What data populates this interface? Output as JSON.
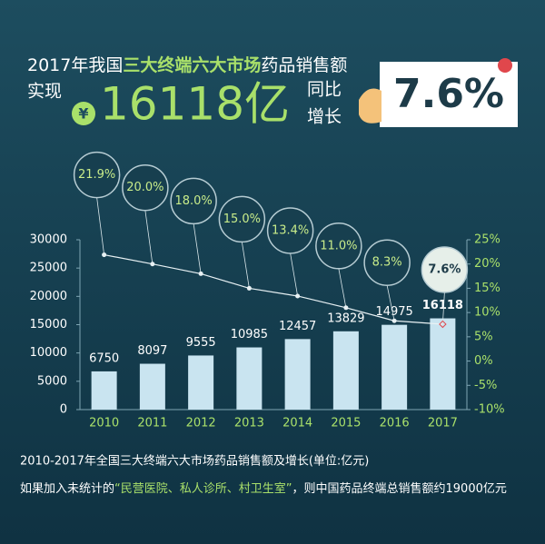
{
  "header": {
    "title": [
      "2017年我国",
      "三大终端六大市场",
      "药品销售额"
    ],
    "realize": "实现",
    "currency": "¥",
    "amount": "16118亿",
    "yoy": [
      "同比",
      "增长"
    ],
    "growth": "7.6%"
  },
  "chart_data": {
    "type": "bar-line",
    "categories": [
      "2010",
      "2011",
      "2012",
      "2013",
      "2014",
      "2015",
      "2016",
      "2017"
    ],
    "series": [
      {
        "type": "bar",
        "color": "#c9e4f0",
        "values": [
          6750,
          8097,
          9555,
          10985,
          12457,
          13829,
          14975,
          16118
        ]
      },
      {
        "type": "line",
        "axis": "y2",
        "color": "#e8f1f4",
        "values": [
          21.9,
          20.0,
          18.0,
          15.0,
          13.4,
          11.0,
          8.3,
          7.6
        ],
        "value_labels": [
          "21.9%",
          "20.0%",
          "18.0%",
          "15.0%",
          "13.4%",
          "11.0%",
          "8.3%",
          "7.6%"
        ]
      }
    ],
    "ylim": [
      0,
      30000
    ],
    "yticks": [
      0,
      5000,
      10000,
      15000,
      20000,
      25000,
      30000
    ],
    "y2lim": [
      -10,
      25
    ],
    "y2ticks": [
      {
        "value": -10,
        "label": "-10%"
      },
      {
        "value": -5,
        "label": "-5%"
      },
      {
        "value": 0,
        "label": "0%"
      },
      {
        "value": 5,
        "label": "5%"
      },
      {
        "value": 10,
        "label": "10%"
      },
      {
        "value": 15,
        "label": "15%"
      },
      {
        "value": 20,
        "label": "20%"
      },
      {
        "value": 25,
        "label": "25%"
      }
    ]
  },
  "footer": {
    "caption": "2010-2017年全国三大终端六大市场药品销售额及增长(单位:亿元)",
    "note": [
      "如果加入未统计的",
      "“民营医院、私人诊所、村卫生室”",
      "，则中国药品终端总销售额约19000亿元"
    ]
  }
}
